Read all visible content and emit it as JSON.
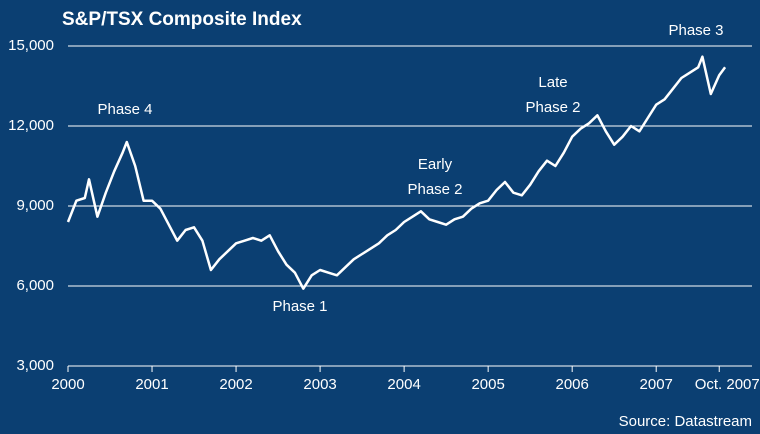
{
  "chart_data": {
    "type": "line",
    "title": "S&P/TSX Composite Index",
    "source": "Source: Datastream",
    "xlim": [
      2000,
      2008.14
    ],
    "xticks": [
      2000,
      2001,
      2002,
      2003,
      2004,
      2005,
      2006,
      2007,
      {
        "value": 2007.75,
        "label": "Oct. 2007"
      }
    ],
    "ylim": [
      3000,
      15000
    ],
    "yticks": [
      {
        "value": 3000,
        "label": "3,000"
      },
      {
        "value": 6000,
        "label": "6,000"
      },
      {
        "value": 9000,
        "label": "9,000"
      },
      {
        "value": 12000,
        "label": "12,000"
      },
      {
        "value": 15000,
        "label": "15,000"
      }
    ],
    "grid": true,
    "annotations": [
      {
        "lines": [
          "Phase 4"
        ]
      },
      {
        "lines": [
          "Phase 1"
        ]
      },
      {
        "lines": [
          "Early",
          "Phase 2"
        ]
      },
      {
        "lines": [
          "Late",
          "Phase 2"
        ]
      },
      {
        "lines": [
          "Phase 3"
        ]
      }
    ],
    "series": [
      {
        "color": "#ffffff",
        "x": [
          2000.0,
          2000.1,
          2000.2,
          2000.25,
          2000.35,
          2000.45,
          2000.55,
          2000.65,
          2000.7,
          2000.8,
          2000.9,
          2001.0,
          2001.1,
          2001.2,
          2001.3,
          2001.4,
          2001.5,
          2001.6,
          2001.7,
          2001.8,
          2001.9,
          2002.0,
          2002.1,
          2002.2,
          2002.3,
          2002.4,
          2002.5,
          2002.6,
          2002.7,
          2002.8,
          2002.9,
          2003.0,
          2003.1,
          2003.2,
          2003.3,
          2003.4,
          2003.5,
          2003.6,
          2003.7,
          2003.8,
          2003.9,
          2004.0,
          2004.1,
          2004.2,
          2004.3,
          2004.4,
          2004.5,
          2004.6,
          2004.7,
          2004.8,
          2004.9,
          2005.0,
          2005.1,
          2005.2,
          2005.3,
          2005.4,
          2005.5,
          2005.6,
          2005.7,
          2005.8,
          2005.9,
          2006.0,
          2006.1,
          2006.2,
          2006.3,
          2006.4,
          2006.5,
          2006.6,
          2006.7,
          2006.8,
          2006.9,
          2007.0,
          2007.1,
          2007.2,
          2007.3,
          2007.4,
          2007.5,
          2007.55,
          2007.65,
          2007.75,
          2007.82
        ],
        "values": [
          8400,
          9200,
          9300,
          10000,
          8600,
          9500,
          10300,
          11000,
          11400,
          10500,
          9200,
          9200,
          8900,
          8300,
          7700,
          8100,
          8200,
          7700,
          6600,
          7000,
          7300,
          7600,
          7700,
          7800,
          7700,
          7900,
          7300,
          6800,
          6500,
          5900,
          6400,
          6600,
          6500,
          6400,
          6700,
          7000,
          7200,
          7400,
          7600,
          7900,
          8100,
          8400,
          8600,
          8800,
          8500,
          8400,
          8300,
          8500,
          8600,
          8900,
          9100,
          9200,
          9600,
          9900,
          9500,
          9400,
          9800,
          10300,
          10700,
          10500,
          11000,
          11600,
          11900,
          12100,
          12400,
          11800,
          11300,
          11600,
          12000,
          11800,
          12300,
          12800,
          13000,
          13400,
          13800,
          14000,
          14200,
          14600,
          13200,
          13900,
          14200
        ]
      }
    ]
  }
}
